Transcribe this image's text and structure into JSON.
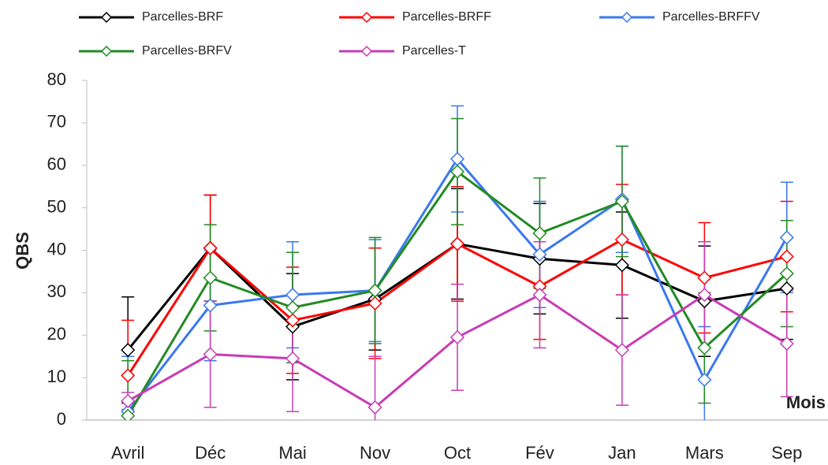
{
  "chart_data": {
    "type": "line",
    "y_label": "QBS",
    "x_label": "Mois",
    "categories": [
      "Avril",
      "Déc",
      "Mai",
      "Nov",
      "Oct",
      "Fév",
      "Jan",
      "Mars",
      "Sep"
    ],
    "ylim": [
      0,
      80
    ],
    "yticks": [
      0,
      10,
      20,
      30,
      40,
      50,
      60,
      70,
      80
    ],
    "series": [
      {
        "name": "Parcelles-BRF",
        "color": "#000000",
        "values": [
          16.5,
          40.5,
          22,
          28.5,
          41.5,
          38,
          36.5,
          28,
          31
        ],
        "errors": [
          12.5,
          12.5,
          12.5,
          12,
          13,
          13,
          12.5,
          13,
          12
        ]
      },
      {
        "name": "Parcelles-BRFF",
        "color": "#ff0000",
        "values": [
          10.5,
          40.5,
          23.5,
          27.5,
          41.5,
          31.5,
          42.5,
          33.5,
          38.5
        ],
        "errors": [
          13,
          12.5,
          12.5,
          13,
          13.5,
          12.5,
          13,
          13,
          13
        ]
      },
      {
        "name": "Parcelles-BRFFV",
        "color": "#3a78f0",
        "values": [
          2,
          27,
          29.5,
          30.5,
          61.5,
          39,
          52,
          9.5,
          43
        ],
        "errors": [
          13,
          13,
          12.5,
          12,
          12.5,
          12.5,
          12.5,
          12.5,
          13
        ]
      },
      {
        "name": "Parcelles-BRFV",
        "color": "#228b22",
        "values": [
          1,
          33.5,
          26.5,
          30.5,
          58.5,
          44,
          51.5,
          17,
          34.5
        ],
        "errors": [
          13,
          12.5,
          13,
          12.5,
          12.5,
          13,
          13,
          13,
          12.5
        ]
      },
      {
        "name": "Parcelles-T",
        "color": "#c83cb4",
        "values": [
          4.5,
          15.5,
          14.5,
          3,
          19.5,
          29.5,
          16.5,
          29.5,
          18
        ],
        "errors": [
          2,
          12.5,
          12.5,
          12,
          12.5,
          12.5,
          13,
          12.5,
          12.5
        ]
      }
    ]
  }
}
